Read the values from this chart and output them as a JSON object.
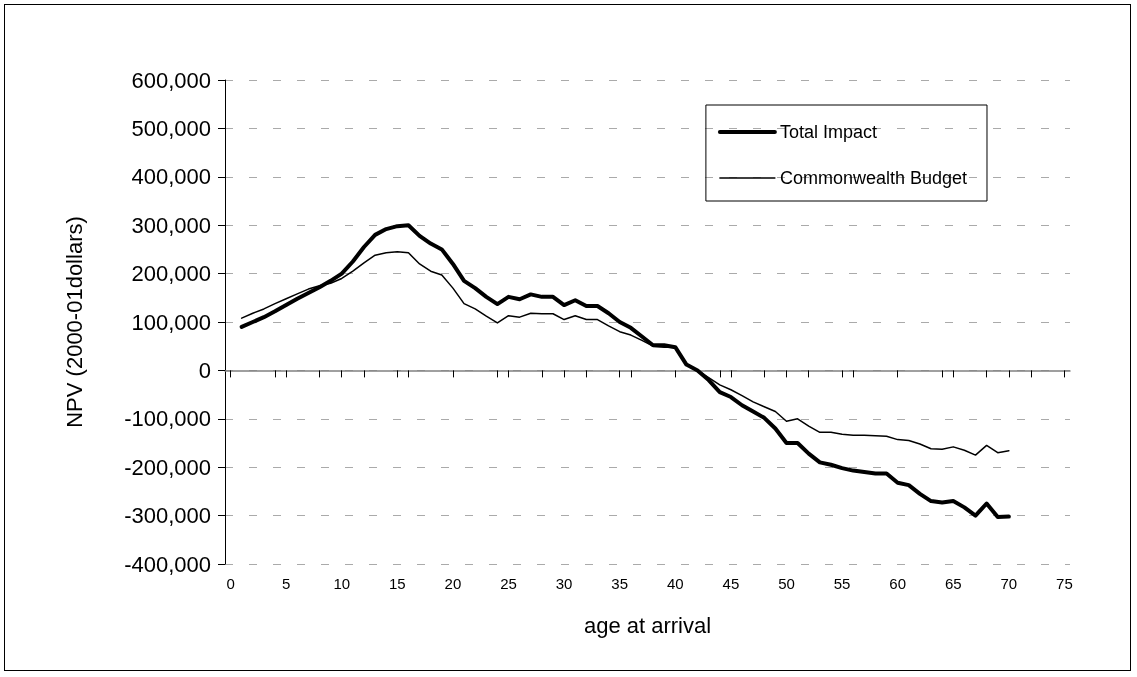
{
  "chart_data": {
    "type": "line",
    "xlabel": "age at arrival",
    "ylabel": "NPV (2000-01dollars)",
    "x": [
      1,
      2,
      3,
      4,
      5,
      6,
      7,
      8,
      9,
      10,
      11,
      12,
      13,
      14,
      15,
      16,
      17,
      18,
      19,
      20,
      21,
      22,
      23,
      24,
      25,
      26,
      27,
      28,
      29,
      30,
      31,
      32,
      33,
      34,
      35,
      36,
      37,
      38,
      39,
      40,
      41,
      42,
      43,
      44,
      45,
      46,
      47,
      48,
      49,
      50,
      51,
      52,
      53,
      54,
      55,
      56,
      57,
      58,
      59,
      60,
      61,
      62,
      63,
      64,
      65,
      66,
      67,
      68,
      69,
      70
    ],
    "series": [
      {
        "name": "Total Impact",
        "color": "#000000",
        "values": [
          90000,
          100000,
          110000,
          122000,
          135000,
          148000,
          160000,
          172000,
          185000,
          200000,
          225000,
          255000,
          280000,
          292000,
          298000,
          300000,
          278000,
          262000,
          250000,
          220000,
          185000,
          170000,
          152000,
          137000,
          152000,
          147000,
          157000,
          152000,
          152000,
          135000,
          145000,
          133000,
          133000,
          118000,
          100000,
          88000,
          70000,
          52000,
          52000,
          48000,
          12000,
          0,
          -20000,
          -45000,
          -55000,
          -72000,
          -85000,
          -98000,
          -120000,
          -150000,
          -150000,
          -172000,
          -190000,
          -195000,
          -202000,
          -207000,
          -210000,
          -213000,
          -213000,
          -232000,
          -237000,
          -255000,
          -270000,
          -273000,
          -270000,
          -283000,
          -300000,
          -275000,
          -303000,
          -302000
        ]
      },
      {
        "name": "Commonwealth Budget",
        "color": "#000000",
        "values": [
          108000,
          118000,
          127000,
          138000,
          148000,
          158000,
          168000,
          175000,
          180000,
          190000,
          205000,
          222000,
          238000,
          243000,
          245000,
          243000,
          220000,
          205000,
          197000,
          170000,
          138000,
          127000,
          112000,
          98000,
          113000,
          110000,
          118000,
          117000,
          117000,
          105000,
          113000,
          105000,
          105000,
          92000,
          80000,
          73000,
          62000,
          50000,
          48000,
          48000,
          12000,
          0,
          -15000,
          -30000,
          -40000,
          -52000,
          -65000,
          -75000,
          -85000,
          -105000,
          -100000,
          -115000,
          -128000,
          -128000,
          -132000,
          -134000,
          -134000,
          -135000,
          -136000,
          -143000,
          -145000,
          -152000,
          -162000,
          -163000,
          -158000,
          -165000,
          -175000,
          -155000,
          -170000,
          -166000
        ]
      }
    ],
    "xlim": [
      -0.5,
      75.5
    ],
    "xticks": [
      0,
      5,
      10,
      15,
      20,
      25,
      30,
      35,
      40,
      45,
      50,
      55,
      60,
      65,
      70,
      75
    ],
    "ylim": [
      -400000,
      600000
    ],
    "yticks": [
      {
        "value": -400000,
        "label": "-400,000"
      },
      {
        "value": -300000,
        "label": "-300,000"
      },
      {
        "value": -200000,
        "label": "-200,000"
      },
      {
        "value": -100000,
        "label": "-100,000"
      },
      {
        "value": 0,
        "label": "0"
      },
      {
        "value": 100000,
        "label": "100,000"
      },
      {
        "value": 200000,
        "label": "200,000"
      },
      {
        "value": 300000,
        "label": "300,000"
      },
      {
        "value": 400000,
        "label": "400,000"
      },
      {
        "value": 500000,
        "label": "500,000"
      },
      {
        "value": 600000,
        "label": "600,000"
      }
    ],
    "grid": "y",
    "legend": "top right",
    "marker": "none",
    "line_style": "solid"
  }
}
